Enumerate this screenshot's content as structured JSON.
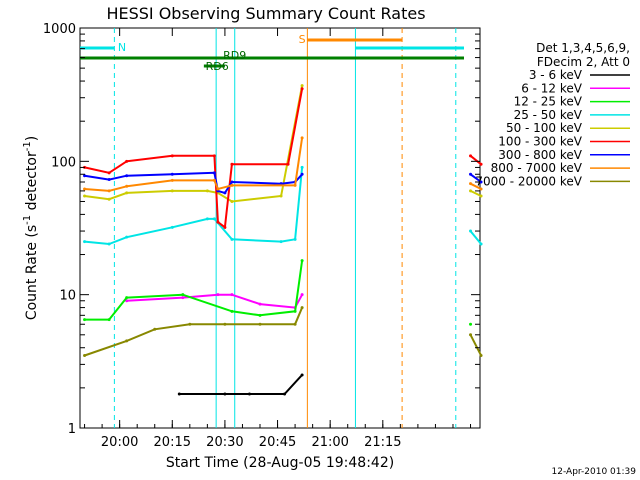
{
  "chart_data": {
    "type": "line",
    "title": "HESSI Observing Summary Count Rates",
    "xlabel": "Start Time (28-Aug-05 19:48:42)",
    "ylabel_main": "Count Rate (s",
    "ylabel_sup1": "-1",
    "ylabel_mid": " detector",
    "ylabel_sup2": "-1",
    "ylabel_end": ")",
    "footer": "12-Apr-2010 01:39",
    "yscale": "log",
    "ylim": [
      1,
      1000
    ],
    "xlim_min": [
      48.7,
      82.7
    ],
    "x_tick_labels": [
      {
        "min": 60,
        "label": "20:00"
      },
      {
        "min": 75,
        "label": "20:15"
      },
      {
        "min": 90,
        "label": "20:30"
      },
      {
        "min": 105,
        "label": "20:45"
      },
      {
        "min": 120,
        "label": "21:00"
      },
      {
        "min": 135,
        "label": "21:15"
      }
    ],
    "y_tick_labels": [
      {
        "value": 1,
        "label": "1"
      },
      {
        "value": 10,
        "label": "10"
      },
      {
        "value": 100,
        "label": "100"
      },
      {
        "value": 1000,
        "label": "1000"
      }
    ],
    "legend_header": [
      "Det 1,3,4,5,6,9,",
      "FDecim 2, Att 0"
    ],
    "legend_placement": "right",
    "series": [
      {
        "name": "3 - 6 keV",
        "color": "#000000",
        "points": [
          [
            77,
            1.8
          ],
          [
            90,
            1.8
          ],
          [
            97,
            1.8
          ],
          [
            107,
            1.8
          ],
          [
            112,
            2.5
          ]
        ]
      },
      {
        "name": "6 - 12 keV",
        "color": "#ff00ff",
        "points": [
          [
            62,
            9
          ],
          [
            78,
            9.5
          ],
          [
            88,
            10
          ],
          [
            92,
            10
          ],
          [
            100,
            8.5
          ],
          [
            110,
            8
          ],
          [
            112,
            10
          ]
        ]
      },
      {
        "name": "12 - 25 keV",
        "color": "#00ee00",
        "points": [
          [
            50,
            6.5
          ],
          [
            57,
            6.5
          ],
          [
            62,
            9.5
          ],
          [
            78,
            10
          ],
          [
            92,
            7.5
          ],
          [
            100,
            7
          ],
          [
            110,
            7.5
          ],
          [
            112,
            18
          ],
          [
            160,
            6
          ]
        ]
      },
      {
        "name": "25 - 50 keV",
        "color": "#00e5e5",
        "points": [
          [
            50,
            25
          ],
          [
            57,
            24
          ],
          [
            62,
            27
          ],
          [
            75,
            32
          ],
          [
            85,
            37
          ],
          [
            87,
            37
          ],
          [
            92,
            26
          ],
          [
            106,
            25
          ],
          [
            110,
            26
          ],
          [
            112,
            90
          ],
          [
            160,
            30
          ],
          [
            163,
            24
          ]
        ]
      },
      {
        "name": "50 - 100 keV",
        "color": "#cccc00",
        "points": [
          [
            50,
            55
          ],
          [
            57,
            52
          ],
          [
            62,
            58
          ],
          [
            75,
            60
          ],
          [
            85,
            60
          ],
          [
            88,
            58
          ],
          [
            92,
            50
          ],
          [
            106,
            55
          ],
          [
            112,
            370
          ],
          [
            160,
            60
          ],
          [
            163,
            55
          ]
        ]
      },
      {
        "name": "100 - 300 keV",
        "color": "#ff0000",
        "points": [
          [
            50,
            90
          ],
          [
            57,
            82
          ],
          [
            62,
            100
          ],
          [
            75,
            110
          ],
          [
            87,
            110
          ],
          [
            88,
            35
          ],
          [
            90,
            32
          ],
          [
            92,
            95
          ],
          [
            108,
            95
          ],
          [
            112,
            350
          ],
          [
            160,
            110
          ],
          [
            163,
            95
          ]
        ]
      },
      {
        "name": "300 - 800 keV",
        "color": "#0000ff",
        "points": [
          [
            50,
            78
          ],
          [
            57,
            73
          ],
          [
            62,
            78
          ],
          [
            75,
            80
          ],
          [
            87,
            82
          ],
          [
            88,
            60
          ],
          [
            90,
            58
          ],
          [
            92,
            70
          ],
          [
            106,
            68
          ],
          [
            110,
            70
          ],
          [
            112,
            80
          ],
          [
            160,
            80
          ],
          [
            163,
            70
          ]
        ]
      },
      {
        "name": "800 - 7000 keV",
        "color": "#ff8800",
        "points": [
          [
            50,
            62
          ],
          [
            57,
            60
          ],
          [
            62,
            65
          ],
          [
            75,
            72
          ],
          [
            87,
            72
          ],
          [
            88,
            62
          ],
          [
            92,
            66
          ],
          [
            110,
            66
          ],
          [
            112,
            150
          ],
          [
            160,
            68
          ],
          [
            163,
            62
          ]
        ]
      },
      {
        "name": "7000 - 20000 keV",
        "color": "#888800",
        "points": [
          [
            50,
            3.5
          ],
          [
            62,
            4.5
          ],
          [
            70,
            5.5
          ],
          [
            80,
            6
          ],
          [
            90,
            6
          ],
          [
            100,
            6
          ],
          [
            110,
            6
          ],
          [
            112,
            8
          ],
          [
            160,
            5
          ],
          [
            163,
            3.5
          ]
        ]
      }
    ],
    "annotations": [
      {
        "text": "N",
        "color": "#00e5e5"
      },
      {
        "text": "RD6",
        "color": "#006600"
      },
      {
        "text": "RD9",
        "color": "#006600"
      },
      {
        "text": "S",
        "color": "#ff8800"
      }
    ]
  }
}
